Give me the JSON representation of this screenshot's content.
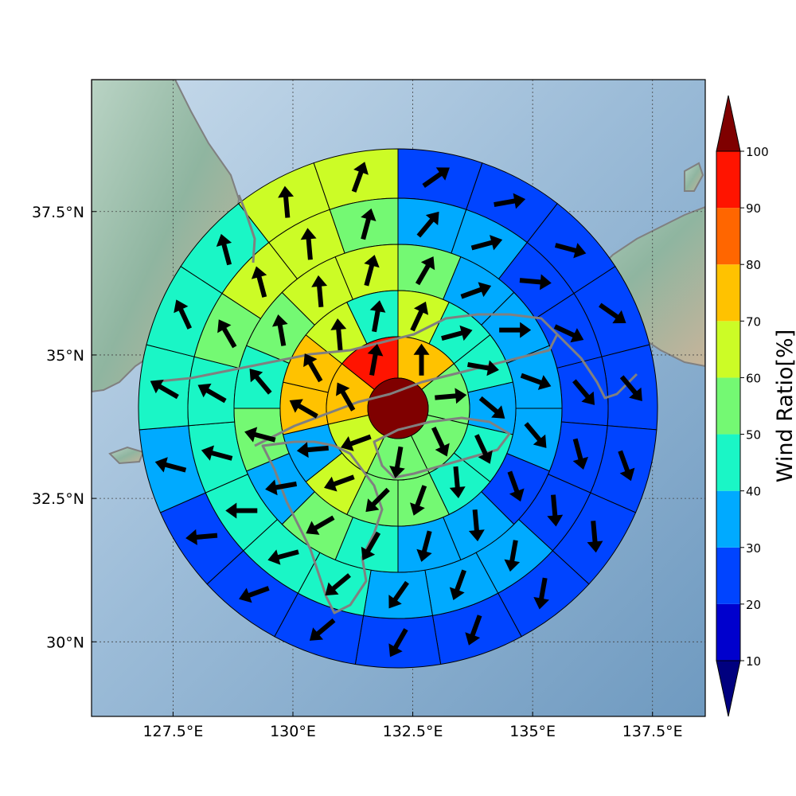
{
  "map": {
    "lon_range": [
      125.8,
      138.6
    ],
    "lat_range": [
      28.7,
      39.8
    ],
    "lon_ticks": [
      {
        "value": 127.5,
        "label": "127.5°E"
      },
      {
        "value": 130.0,
        "label": "130°E"
      },
      {
        "value": 132.5,
        "label": "132.5°E"
      },
      {
        "value": 135.0,
        "label": "135°E"
      },
      {
        "value": 137.5,
        "label": "137.5°E"
      }
    ],
    "lat_ticks": [
      {
        "value": 37.5,
        "label": "37.5°N"
      },
      {
        "value": 35.0,
        "label": "35°N"
      },
      {
        "value": 32.5,
        "label": "32.5°N"
      },
      {
        "value": 30.0,
        "label": "30°N"
      }
    ],
    "grid": true,
    "colors": {
      "sea": "#9cbcd8",
      "sea_dark": "#6f9ac0",
      "land": "#8fb5a0",
      "coast": "#808080"
    }
  },
  "colorbar": {
    "label": "Wind Ratio[%]",
    "ticks": [
      "10",
      "20",
      "30",
      "40",
      "50",
      "60",
      "70",
      "80",
      "90",
      "100"
    ],
    "colors": [
      "#0000cd",
      "#0044ff",
      "#00aaff",
      "#1af6c6",
      "#74f973",
      "#ccfc26",
      "#ffc200",
      "#ff6600",
      "#ff1400"
    ],
    "under_color": "#00007f",
    "over_color": "#7f0000"
  },
  "polar_grid": {
    "center_value": 100,
    "rings": [
      {
        "ring": 1,
        "values": [
          70,
          50,
          50,
          50,
          60,
          70,
          90
        ]
      },
      {
        "ring": 2,
        "values": [
          60,
          40,
          40,
          30,
          40,
          40,
          50,
          50,
          60,
          30,
          70,
          70,
          60,
          40
        ]
      },
      {
        "ring": 3,
        "values": [
          50,
          30,
          30,
          30,
          30,
          20,
          30,
          30,
          40,
          50,
          30,
          50,
          40,
          50,
          60,
          60
        ]
      },
      {
        "ring": 4,
        "values": [
          30,
          30,
          20,
          20,
          20,
          20,
          20,
          30,
          30,
          30,
          40,
          40,
          40,
          40,
          40,
          50,
          60,
          60,
          50
        ]
      },
      {
        "ring": 5,
        "values": [
          20,
          20,
          20,
          20,
          20,
          20,
          20,
          20,
          20,
          20,
          20,
          20,
          20,
          30,
          40,
          40,
          40,
          60,
          60
        ]
      }
    ],
    "arrow_dirs": {
      "center_ring1": [
        0,
        85,
        155,
        190,
        250,
        330,
        10
      ],
      "ring2": [
        25,
        75,
        100,
        130,
        155,
        175,
        200,
        225,
        250,
        265,
        300,
        330,
        355,
        10
      ],
      "ring3": [
        30,
        70,
        90,
        110,
        140,
        160,
        175,
        195,
        210,
        240,
        260,
        285,
        320,
        350,
        355,
        15
      ],
      "ring4": [
        40,
        75,
        95,
        115,
        140,
        165,
        175,
        190,
        200,
        215,
        230,
        255,
        270,
        285,
        300,
        330,
        345,
        355,
        15
      ],
      "ring5": [
        55,
        80,
        105,
        125,
        140,
        160,
        175,
        190,
        200,
        210,
        230,
        250,
        265,
        285,
        300,
        335,
        345,
        355,
        20
      ]
    }
  }
}
